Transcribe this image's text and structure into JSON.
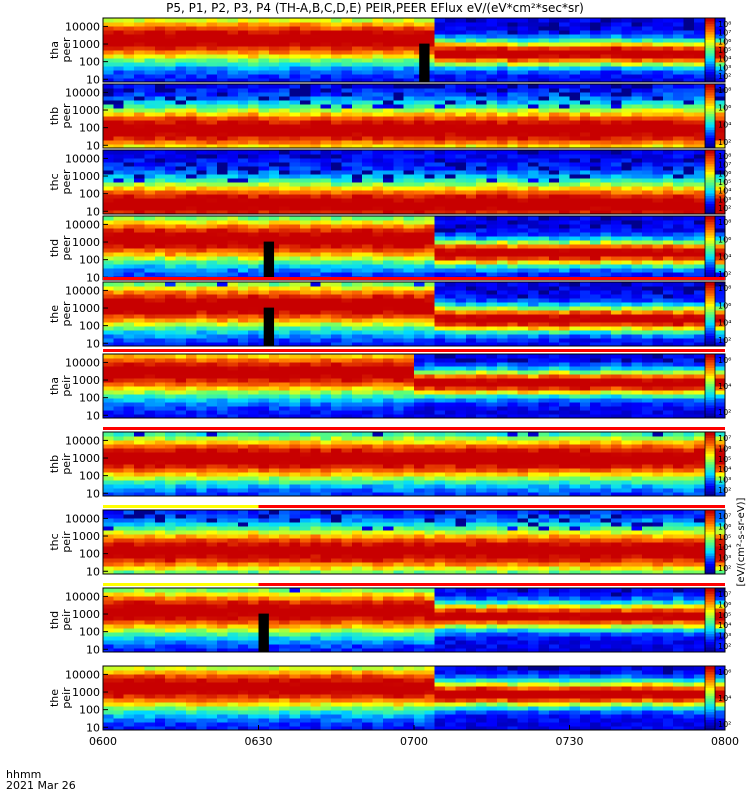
{
  "title": "P5, P1, P2, P3, P4 (TH-A,B,C,D,E) PEIR,PEER EFlux eV/(eV*cm²*sec*sr)",
  "x_axis": {
    "label": "hhmm",
    "date": "2021 Mar 26",
    "ticks": [
      "0600",
      "0630",
      "0700",
      "0730",
      "0800"
    ]
  },
  "colorbar_label": "[eV/(cm²-s-sr-eV)]",
  "chart_data": [
    {
      "type": "heatmap",
      "probe": "tha",
      "species": "peer",
      "ylabel": [
        "tha",
        "peer"
      ],
      "yscale": "log",
      "ylim": [
        7,
        30000
      ],
      "yticks": [
        "10000",
        "1000",
        "100",
        "10"
      ],
      "colorbar_ticks": [
        "10⁸",
        "10⁷",
        "10⁶",
        "10⁵",
        "10⁴",
        "10³",
        "10²"
      ],
      "gap": [
        "0701",
        "0703"
      ],
      "transition": "0703",
      "core_before": [
        2000,
        600
      ],
      "core_after": [
        300,
        40
      ]
    },
    {
      "type": "heatmap",
      "probe": "thb",
      "species": "peer",
      "ylabel": [
        "thb",
        "peer"
      ],
      "yscale": "log",
      "ylim": [
        7,
        30000
      ],
      "yticks": [
        "10000",
        "1000",
        "100",
        "10"
      ],
      "colorbar_ticks": [
        "10⁸",
        "10⁶",
        "10⁴",
        "10²"
      ],
      "core_before": [
        80,
        80
      ],
      "core_after": [
        80,
        40
      ]
    },
    {
      "type": "heatmap",
      "probe": "thc",
      "species": "peer",
      "ylabel": [
        "thc",
        "peer"
      ],
      "yscale": "log",
      "ylim": [
        7,
        30000
      ],
      "yticks": [
        "10000",
        "1000",
        "100",
        "10"
      ],
      "colorbar_ticks": [
        "10⁸",
        "10⁷",
        "10⁶",
        "10⁵",
        "10⁴",
        "10³",
        "10²"
      ],
      "core_before": [
        25,
        25
      ],
      "core_after": [
        25,
        25
      ]
    },
    {
      "type": "heatmap",
      "probe": "thd",
      "species": "peer",
      "ylabel": [
        "thd",
        "peer"
      ],
      "yscale": "log",
      "ylim": [
        7,
        30000
      ],
      "yticks": [
        "10000",
        "1000",
        "100",
        "10"
      ],
      "colorbar_ticks": [
        "10⁸",
        "10⁶",
        "10⁴",
        "10²"
      ],
      "gap": [
        "0631",
        "0633"
      ],
      "transition": "0703",
      "core_before": [
        1500,
        500
      ],
      "core_after": [
        250,
        40
      ]
    },
    {
      "type": "heatmap",
      "probe": "the",
      "species": "peer",
      "ylabel": [
        "the",
        "peer"
      ],
      "yscale": "log",
      "ylim": [
        7,
        30000
      ],
      "yticks": [
        "10000",
        "1000",
        "100",
        "10"
      ],
      "colorbar_ticks": [
        "10⁸",
        "10⁶",
        "10⁴",
        "10²"
      ],
      "gap": [
        "0631",
        "0633"
      ],
      "transition": "0703",
      "core_before": [
        1500,
        500
      ],
      "core_after": [
        250,
        40
      ]
    },
    {
      "type": "heatmap",
      "probe": "tha",
      "species": "peir",
      "ylabel": [
        "tha",
        "peir"
      ],
      "yscale": "log",
      "ylim": [
        7,
        30000
      ],
      "yticks": [
        "10000",
        "1000",
        "100",
        "10"
      ],
      "colorbar_ticks": [
        "10⁶",
        "10⁴",
        "10²"
      ],
      "transition": "0700",
      "core_before": [
        3000,
        2000
      ],
      "core_after": [
        700,
        500
      ]
    },
    {
      "type": "heatmap",
      "probe": "thb",
      "species": "peir",
      "ylabel": [
        "thb",
        "peir"
      ],
      "yscale": "log",
      "ylim": [
        7,
        30000
      ],
      "yticks": [
        "10000",
        "1000",
        "100",
        "10"
      ],
      "colorbar_ticks": [
        "10⁷",
        "10⁶",
        "10⁵",
        "10⁴",
        "10³",
        "10²"
      ],
      "core_before": [
        1000,
        1000
      ],
      "core_after": [
        1000,
        300
      ]
    },
    {
      "type": "heatmap",
      "probe": "thc",
      "species": "peir",
      "ylabel": [
        "thc",
        "peir"
      ],
      "yscale": "log",
      "ylim": [
        7,
        30000
      ],
      "yticks": [
        "10000",
        "1000",
        "100",
        "10"
      ],
      "colorbar_ticks": [
        "10⁷",
        "10⁶",
        "10⁵",
        "10⁴",
        "10³",
        "10²"
      ],
      "core_before": [
        150,
        100
      ],
      "core_after": [
        80,
        60
      ]
    },
    {
      "type": "heatmap",
      "probe": "thd",
      "species": "peir",
      "ylabel": [
        "thd",
        "peir"
      ],
      "yscale": "log",
      "ylim": [
        7,
        30000
      ],
      "yticks": [
        "10000",
        "1000",
        "100",
        "10"
      ],
      "colorbar_ticks": [
        "10⁷",
        "10⁶",
        "10⁵",
        "10⁴",
        "10³",
        "10²"
      ],
      "gap": [
        "0630",
        "0632"
      ],
      "transition": "0703",
      "core_before": [
        1500,
        600
      ],
      "core_after": [
        800,
        400
      ]
    },
    {
      "type": "heatmap",
      "probe": "the",
      "species": "peir",
      "ylabel": [
        "the",
        "peir"
      ],
      "yscale": "log",
      "ylim": [
        7,
        30000
      ],
      "yticks": [
        "10000",
        "1000",
        "100",
        "10"
      ],
      "colorbar_ticks": [
        "10⁶",
        "10⁴",
        "10²"
      ],
      "transition": "0703",
      "core_before": [
        2000,
        1000
      ],
      "core_after": [
        800,
        500
      ]
    }
  ],
  "flag_bars": [
    {
      "after_panel": 4,
      "segments": [
        {
          "from": "0600",
          "to": "0700",
          "color": "#ff0000"
        },
        {
          "from": "0700",
          "to": "0800",
          "color": "#ff0000"
        }
      ]
    },
    {
      "after_panel": 5,
      "segments": [
        {
          "from": "0600",
          "to": "0800",
          "color": "#ff0000"
        }
      ]
    },
    {
      "after_panel": 6,
      "segments": [
        {
          "from": "0600",
          "to": "0800",
          "color": "#ff0000"
        }
      ]
    },
    {
      "after_panel": 7,
      "segments": [
        {
          "from": "0600",
          "to": "0630",
          "color": "#ffff00"
        },
        {
          "from": "0630",
          "to": "0800",
          "color": "#ff0000"
        }
      ]
    },
    {
      "after_panel": 8,
      "segments": [
        {
          "from": "0600",
          "to": "0630",
          "color": "#ffff00"
        },
        {
          "from": "0630",
          "to": "0800",
          "color": "#ff0000"
        }
      ]
    }
  ]
}
